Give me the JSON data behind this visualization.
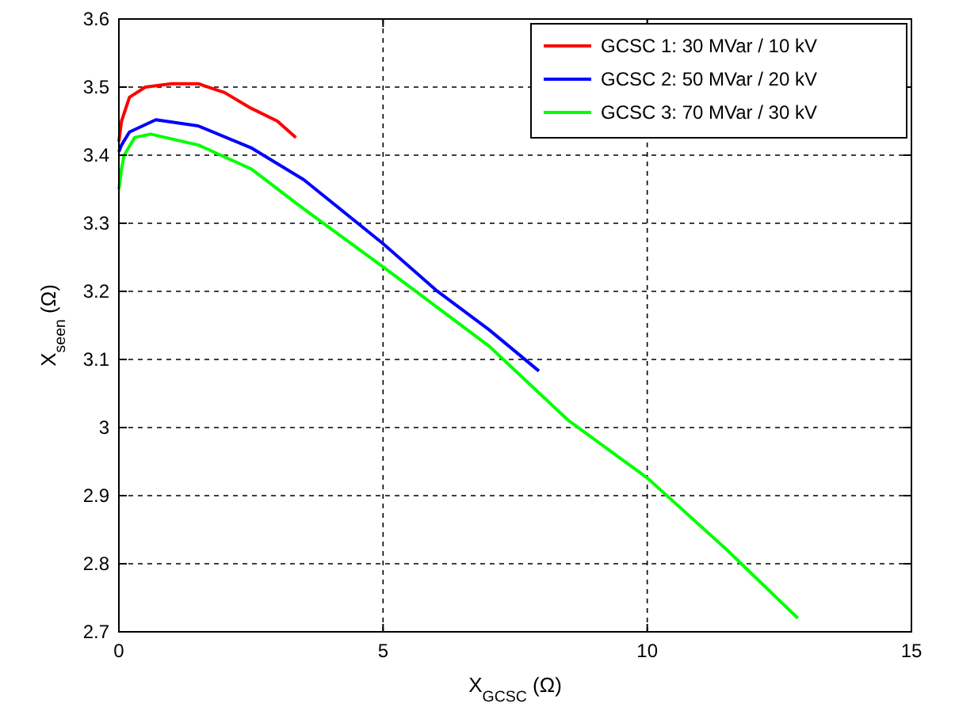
{
  "chart_data": {
    "type": "line",
    "xlabel": "X$_{GCSC}$ (Ω)",
    "ylabel": "X$_{seen}$ (Ω)",
    "xlim": [
      0,
      15
    ],
    "xticks": [
      0,
      5,
      10,
      15
    ],
    "ylim": [
      2.7,
      3.6
    ],
    "yticks": [
      2.7,
      2.8,
      2.9,
      3,
      3.1,
      3.2,
      3.3,
      3.4,
      3.5,
      3.6
    ],
    "grid": true,
    "legend": "top right",
    "line_style": "solid",
    "series": [
      {
        "name": "GCSC 1: 30 MVar / 10 kV",
        "color": "#ff0000",
        "x": [
          0,
          0.05,
          0.2,
          0.5,
          1,
          1.5,
          2,
          2.5,
          3,
          3.35
        ],
        "values": [
          3.42,
          3.45,
          3.485,
          3.5,
          3.505,
          3.505,
          3.492,
          3.469,
          3.45,
          3.426
        ]
      },
      {
        "name": "GCSC 2: 50 MVar / 20 kV",
        "color": "#0000ff",
        "x": [
          0,
          0.05,
          0.2,
          0.7,
          1.5,
          2.5,
          3.5,
          5,
          6,
          7,
          7.95
        ],
        "values": [
          3.405,
          3.415,
          3.434,
          3.452,
          3.443,
          3.411,
          3.364,
          3.27,
          3.202,
          3.144,
          3.083
        ]
      },
      {
        "name": "GCSC 3: 70 MVar / 30 kV",
        "color": "#00ff00",
        "x": [
          0,
          0.05,
          0.1,
          0.3,
          0.6,
          1.5,
          2.5,
          3.5,
          5,
          7,
          8.5,
          10,
          11.5,
          12.85
        ],
        "values": [
          3.35,
          3.38,
          3.4,
          3.426,
          3.431,
          3.415,
          3.38,
          3.321,
          3.236,
          3.12,
          3.011,
          2.926,
          2.821,
          2.72
        ]
      }
    ]
  }
}
